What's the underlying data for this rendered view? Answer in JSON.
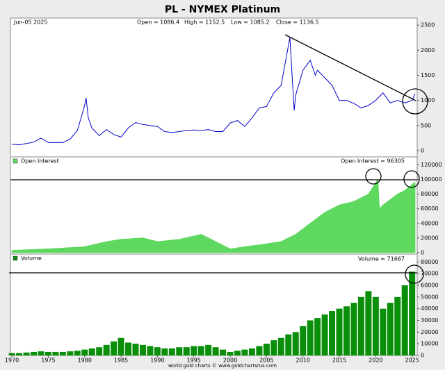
{
  "chart_data": [
    {
      "type": "line",
      "title": "PL  -  NYMEX Platinum",
      "date_label": "Jun-05 2025",
      "annotations": [
        "Open = 1086.4",
        "High = 1152.5",
        "Low = 1085.2",
        "Close = 1136.5"
      ],
      "color": "#0000cc",
      "x": [
        1970,
        1971,
        1972,
        1973,
        1974,
        1975,
        1976,
        1977,
        1978,
        1979,
        1980,
        1980.2,
        1980.5,
        1981,
        1982,
        1983,
        1984,
        1985,
        1986,
        1987,
        1988,
        1989,
        1990,
        1991,
        1992,
        1993,
        1994,
        1995,
        1996,
        1997,
        1998,
        1999,
        2000,
        2001,
        2002,
        2003,
        2004,
        2005,
        2006,
        2007,
        2008.2,
        2008.8,
        2009,
        2010,
        2011,
        2011.7,
        2012,
        2013,
        2014,
        2015,
        2016,
        2017,
        2018,
        2019,
        2020,
        2021,
        2022,
        2023,
        2024,
        2025,
        2025.4
      ],
      "values": [
        130,
        115,
        140,
        170,
        250,
        160,
        160,
        160,
        230,
        400,
        900,
        1050,
        650,
        450,
        300,
        420,
        320,
        270,
        450,
        560,
        520,
        500,
        480,
        380,
        360,
        380,
        400,
        410,
        400,
        420,
        380,
        380,
        550,
        600,
        480,
        650,
        850,
        880,
        1150,
        1300,
        2250,
        800,
        1100,
        1600,
        1800,
        1500,
        1600,
        1450,
        1300,
        1000,
        1000,
        940,
        850,
        900,
        1000,
        1150,
        950,
        1000,
        950,
        1000,
        1130
      ],
      "xlim": [
        1969.8,
        2025.7
      ],
      "ylim": [
        -125,
        2640
      ],
      "yticks": [
        0,
        500,
        1000,
        1500,
        2000,
        2500
      ]
    },
    {
      "type": "area",
      "last_value_label": "Open Interest = 96305",
      "x": [
        1970,
        1975,
        1980,
        1983,
        1985,
        1988,
        1990,
        1993,
        1996,
        1998,
        2000,
        2002,
        2005,
        2007,
        2009,
        2011,
        2013,
        2015,
        2017,
        2019,
        2020.3,
        2020.5,
        2021,
        2023,
        2024,
        2025.4
      ],
      "series": [
        {
          "name": "Open Interest",
          "color": "#5ed85e",
          "values": [
            3000,
            5000,
            8000,
            15000,
            18000,
            20000,
            15000,
            18000,
            25000,
            15000,
            5000,
            8000,
            12000,
            15000,
            25000,
            40000,
            55000,
            65000,
            70000,
            80000,
            100000,
            60000,
            65000,
            80000,
            85000,
            96305
          ]
        }
      ],
      "xlim": [
        1969.8,
        2025.7
      ],
      "ylim": [
        -2000,
        131000
      ],
      "yticks": [
        0,
        20000,
        40000,
        60000,
        80000,
        100000,
        120000
      ]
    },
    {
      "type": "bar",
      "last_value_label": "Volume = 71667",
      "source": "world gold charts © www.goldchartsrus.com",
      "x": [
        1970,
        1971,
        1972,
        1973,
        1974,
        1975,
        1976,
        1977,
        1978,
        1979,
        1980,
        1981,
        1982,
        1983,
        1984,
        1985,
        1986,
        1987,
        1988,
        1989,
        1990,
        1991,
        1992,
        1993,
        1994,
        1995,
        1996,
        1997,
        1998,
        1999,
        2000,
        2001,
        2002,
        2003,
        2004,
        2005,
        2006,
        2007,
        2008,
        2009,
        2010,
        2011,
        2012,
        2013,
        2014,
        2015,
        2016,
        2017,
        2018,
        2019,
        2020,
        2021,
        2022,
        2023,
        2024,
        2025
      ],
      "series": [
        {
          "name": "Volume",
          "color": "#0a8f0a",
          "values": [
            2000,
            2000,
            2500,
            3000,
            3500,
            3000,
            3000,
            3000,
            3500,
            4000,
            5000,
            6000,
            7000,
            9000,
            12000,
            15000,
            11000,
            10000,
            9000,
            8000,
            7000,
            6000,
            6000,
            7000,
            7000,
            8000,
            8000,
            9000,
            7000,
            5000,
            3000,
            4000,
            5000,
            6000,
            8000,
            10000,
            13000,
            15000,
            18000,
            20000,
            25000,
            30000,
            32000,
            35000,
            38000,
            40000,
            42000,
            45000,
            50000,
            55000,
            50000,
            40000,
            45000,
            50000,
            60000,
            71667
          ]
        }
      ],
      "xlim": [
        1969.8,
        2025.7
      ],
      "ylim": [
        0,
        86700
      ],
      "yticks": [
        0,
        10000,
        20000,
        30000,
        40000,
        50000,
        60000,
        70000,
        80000
      ],
      "xticks": [
        1970,
        1975,
        1980,
        1985,
        1990,
        1995,
        2000,
        2005,
        2010,
        2015,
        2020,
        2025
      ]
    }
  ]
}
